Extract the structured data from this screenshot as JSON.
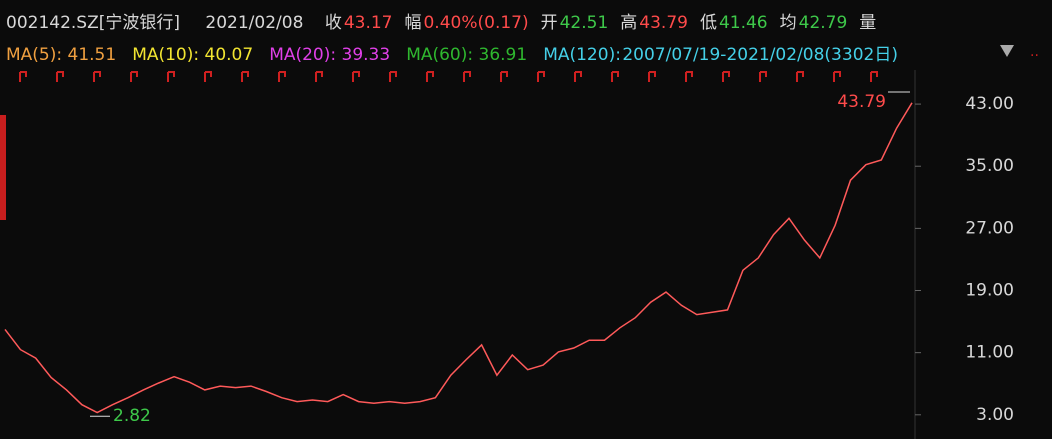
{
  "chart_data": {
    "type": "line",
    "header": {
      "code": "002142.SZ[宁波银行]",
      "date": "2021/02/08",
      "fields": [
        {
          "label": "收",
          "value": 43.17,
          "color": "#ff4b4b"
        },
        {
          "label": "幅",
          "value": "0.40%(0.17)",
          "color": "#ff4b4b"
        },
        {
          "label": "开",
          "value": 42.51,
          "color": "#3ec94a"
        },
        {
          "label": "高",
          "value": 43.79,
          "color": "#ff4b4b"
        },
        {
          "label": "低",
          "value": 41.46,
          "color": "#3ec94a"
        },
        {
          "label": "均",
          "value": 42.79,
          "color": "#3ec94a"
        }
      ],
      "volume_label": "量"
    },
    "ma": [
      {
        "label": "MA(5): ",
        "value": 41.51,
        "color": "#f0a040"
      },
      {
        "label": "MA(10): ",
        "value": 40.07,
        "color": "#f2e531"
      },
      {
        "label": "MA(20): ",
        "value": 39.33,
        "color": "#e040e8"
      },
      {
        "label": "MA(60): ",
        "value": 36.91,
        "color": "#2fb82f"
      },
      {
        "label": "MA(120): ",
        "color": "#45d0e8"
      }
    ],
    "range": "2007/07/19-2021/02/08(3302日)",
    "high_label": 43.79,
    "low_label": 2.82,
    "series": [
      {
        "color": "#ff5a5a",
        "values": [
          14,
          11.4,
          10.3,
          7.8,
          6.2,
          4.3,
          3.3,
          4.3,
          5.2,
          6.2,
          7.1,
          7.9,
          7.2,
          6.2,
          6.7,
          6.5,
          6.7,
          6.0,
          5.2,
          4.7,
          4.9,
          4.7,
          5.6,
          4.7,
          4.5,
          4.7,
          4.5,
          4.7,
          5.2,
          8.1,
          10.1,
          12.0,
          8.1,
          10.7,
          8.8,
          9.4,
          11.1,
          11.6,
          12.6,
          12.6,
          14.2,
          15.5,
          17.5,
          18.8,
          17.1,
          15.9,
          16.2,
          16.5,
          21.6,
          23.2,
          26.2,
          28.3,
          25.5,
          23.2,
          27.4,
          33.2,
          35.2,
          35.8,
          39.9,
          43.17
        ]
      }
    ],
    "ylim": [
      0.4,
      46.1
    ],
    "yticks": [
      {
        "value": 43,
        "label": "43.00"
      },
      {
        "value": 35,
        "label": "35.00"
      },
      {
        "value": 27,
        "label": "27.00"
      },
      {
        "value": 19,
        "label": "19.00"
      },
      {
        "value": 11,
        "label": "11.00"
      },
      {
        "value": 3,
        "label": "3.00"
      }
    ]
  }
}
